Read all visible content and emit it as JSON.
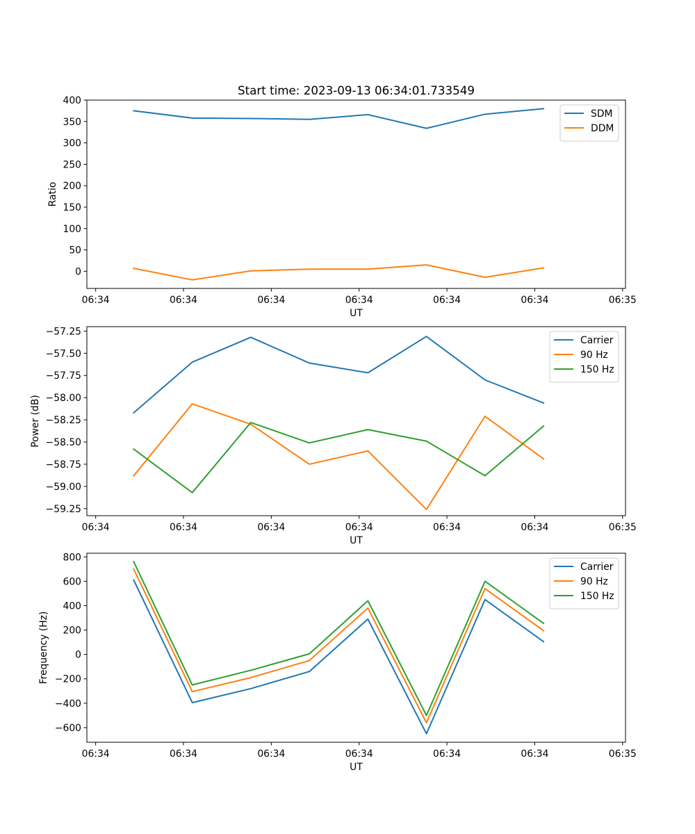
{
  "chart_data": [
    {
      "type": "line",
      "title": "Start time: 2023-09-13 06:34:01.733549",
      "xlabel": "UT",
      "ylabel": "Ratio",
      "x": [
        1,
        2,
        3,
        4,
        5,
        6,
        7,
        8
      ],
      "xlim": [
        0.2,
        9.4
      ],
      "xticks": [
        0.35,
        1.85,
        3.35,
        4.85,
        6.35,
        7.85,
        9.35
      ],
      "xticklabels": [
        "06:34",
        "06:34",
        "06:34",
        "06:34",
        "06:34",
        "06:34",
        "06:35"
      ],
      "ylim": [
        -40,
        400
      ],
      "yticks": [
        0,
        50,
        100,
        150,
        200,
        250,
        300,
        350,
        400
      ],
      "yticklabels": [
        "0",
        "50",
        "100",
        "150",
        "200",
        "250",
        "300",
        "350",
        "400"
      ],
      "legend": "top-right",
      "series": [
        {
          "name": "SDM",
          "color": "#1f77b4",
          "values": [
            375,
            358,
            357,
            355,
            366,
            334,
            367,
            380
          ]
        },
        {
          "name": "DDM",
          "color": "#ff7f0e",
          "values": [
            7,
            -20,
            1,
            5,
            5,
            15,
            -14,
            8
          ]
        }
      ]
    },
    {
      "type": "line",
      "title": "",
      "xlabel": "UT",
      "ylabel": "Power (dB)",
      "x": [
        1,
        2,
        3,
        4,
        5,
        6,
        7,
        8
      ],
      "xlim": [
        0.2,
        9.4
      ],
      "xticks": [
        0.35,
        1.85,
        3.35,
        4.85,
        6.35,
        7.85,
        9.35
      ],
      "xticklabels": [
        "06:34",
        "06:34",
        "06:34",
        "06:34",
        "06:34",
        "06:34",
        "06:35"
      ],
      "ylim": [
        -59.33,
        -57.2
      ],
      "yticks": [
        -59.25,
        -59.0,
        -58.75,
        -58.5,
        -58.25,
        -58.0,
        -57.75,
        -57.5,
        -57.25
      ],
      "yticklabels": [
        "−59.25",
        "−59.00",
        "−58.75",
        "−58.50",
        "−58.25",
        "−58.00",
        "−57.75",
        "−57.50",
        "−57.25"
      ],
      "legend": "top-right",
      "series": [
        {
          "name": "Carrier",
          "color": "#1f77b4",
          "values": [
            -58.17,
            -57.6,
            -57.32,
            -57.61,
            -57.72,
            -57.31,
            -57.8,
            -58.06
          ]
        },
        {
          "name": "90 Hz",
          "color": "#ff7f0e",
          "values": [
            -58.88,
            -58.07,
            -58.3,
            -58.75,
            -58.6,
            -59.26,
            -58.21,
            -58.69
          ]
        },
        {
          "name": "150 Hz",
          "color": "#2ca02c",
          "values": [
            -58.58,
            -59.07,
            -58.28,
            -58.51,
            -58.36,
            -58.49,
            -58.88,
            -58.32
          ]
        }
      ]
    },
    {
      "type": "line",
      "title": "",
      "xlabel": "UT",
      "ylabel": "Frequency (Hz)",
      "x": [
        1,
        2,
        3,
        4,
        5,
        6,
        7,
        8
      ],
      "xlim": [
        0.2,
        9.4
      ],
      "xticks": [
        0.35,
        1.85,
        3.35,
        4.85,
        6.35,
        7.85,
        9.35
      ],
      "xticklabels": [
        "06:34",
        "06:34",
        "06:34",
        "06:34",
        "06:34",
        "06:34",
        "06:35"
      ],
      "ylim": [
        -720,
        830
      ],
      "yticks": [
        -600,
        -400,
        -200,
        0,
        200,
        400,
        600,
        800
      ],
      "yticklabels": [
        "−600",
        "−400",
        "−200",
        "0",
        "200",
        "400",
        "600",
        "800"
      ],
      "legend": "top-right",
      "series": [
        {
          "name": "Carrier",
          "color": "#1f77b4",
          "values": [
            610,
            -395,
            -280,
            -140,
            290,
            -650,
            450,
            105
          ]
        },
        {
          "name": "90 Hz",
          "color": "#ff7f0e",
          "values": [
            700,
            -305,
            -190,
            -50,
            380,
            -560,
            540,
            195
          ]
        },
        {
          "name": "150 Hz",
          "color": "#2ca02c",
          "values": [
            760,
            -250,
            -130,
            5,
            440,
            -500,
            600,
            255
          ]
        }
      ]
    }
  ]
}
